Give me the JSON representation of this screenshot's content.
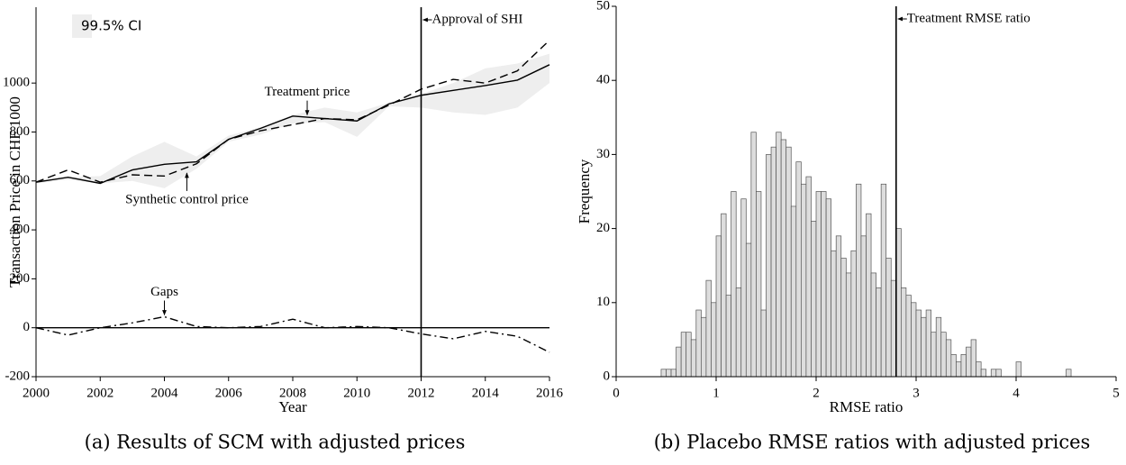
{
  "chart_data": [
    {
      "type": "line",
      "caption": "(a) Results of SCM with adjusted prices",
      "xlabel": "Year",
      "ylabel": "Transaction Price in CHF 1000",
      "x": [
        2000,
        2001,
        2002,
        2003,
        2004,
        2005,
        2006,
        2007,
        2008,
        2009,
        2010,
        2011,
        2012,
        2013,
        2014,
        2015,
        2016
      ],
      "series": [
        {
          "name": "Treatment price",
          "color": "#000000",
          "dash": "solid",
          "values": [
            595,
            615,
            590,
            645,
            668,
            678,
            770,
            815,
            865,
            855,
            845,
            915,
            950,
            970,
            990,
            1012,
            1075
          ],
          "label_at": {
            "x": 2008.45,
            "y": 862,
            "side": "above"
          }
        },
        {
          "name": "Synthetic control price",
          "color": "#000000",
          "dash": "dashed",
          "values": [
            595,
            645,
            595,
            625,
            620,
            670,
            770,
            805,
            830,
            855,
            850,
            910,
            975,
            1015,
            1000,
            1050,
            1175
          ],
          "label_at": {
            "x": 2004.7,
            "y": 640,
            "side": "below"
          }
        },
        {
          "name": "Gaps",
          "color": "#000000",
          "dash": "dashdot",
          "values": [
            0,
            -30,
            0,
            20,
            45,
            5,
            0,
            5,
            35,
            0,
            5,
            0,
            -25,
            -45,
            -15,
            -35,
            -100
          ],
          "label_at": {
            "x": 2004,
            "y": 45,
            "side": "above"
          }
        }
      ],
      "band": {
        "name": "99.5% CI",
        "color": "#eeeeee",
        "lower": [
          590,
          605,
          590,
          600,
          570,
          650,
          760,
          790,
          835,
          840,
          780,
          905,
          900,
          880,
          870,
          900,
          1000
        ],
        "upper": [
          600,
          615,
          620,
          700,
          760,
          700,
          785,
          820,
          870,
          900,
          880,
          920,
          955,
          1000,
          1060,
          1080,
          1120
        ]
      },
      "vline": {
        "x": 2012,
        "label": "Approval of SHI"
      },
      "hline": 0,
      "xlim": [
        2000,
        2016
      ],
      "ylim": [
        -200,
        1310
      ],
      "xticks": [
        2000,
        2002,
        2004,
        2006,
        2008,
        2010,
        2012,
        2014,
        2016
      ],
      "yticks": [
        -200,
        0,
        200,
        400,
        600,
        800,
        1000
      ]
    },
    {
      "type": "histogram",
      "caption": "(b) Placebo RMSE ratios with adjusted prices",
      "xlabel": "RMSE ratio",
      "ylabel": "Frequency",
      "bins": [
        0.45,
        0.5,
        0.55,
        0.6,
        0.65,
        0.7,
        0.75,
        0.8,
        0.85,
        0.9,
        0.95,
        1,
        1.05,
        1.1,
        1.15,
        1.2,
        1.25,
        1.3,
        1.35,
        1.4,
        1.45,
        1.5,
        1.55,
        1.6,
        1.65,
        1.7,
        1.75,
        1.8,
        1.85,
        1.9,
        1.95,
        2,
        2.05,
        2.1,
        2.15,
        2.2,
        2.25,
        2.3,
        2.35,
        2.4,
        2.45,
        2.5,
        2.55,
        2.6,
        2.65,
        2.7,
        2.75,
        2.8,
        2.85,
        2.9,
        2.95,
        3,
        3.05,
        3.1,
        3.15,
        3.2,
        3.25,
        3.3,
        3.35,
        3.4,
        3.45,
        3.5,
        3.55,
        3.6,
        3.65,
        3.7,
        3.75,
        3.8,
        3.85,
        3.9,
        3.95,
        4,
        4.05,
        4.1,
        4.15,
        4.2,
        4.25,
        4.3,
        4.35,
        4.4,
        4.45,
        4.5,
        4.55
      ],
      "counts": [
        1,
        1,
        1,
        4,
        6,
        6,
        5,
        9,
        8,
        13,
        10,
        19,
        22,
        11,
        25,
        12,
        24,
        18,
        33,
        25,
        9,
        30,
        31,
        33,
        32,
        31,
        23,
        29,
        26,
        27,
        21,
        25,
        25,
        24,
        17,
        19,
        16,
        14,
        17,
        26,
        19,
        22,
        14,
        12,
        26,
        16,
        13,
        20,
        12,
        11,
        10,
        9,
        8,
        9,
        6,
        8,
        6,
        5,
        3,
        2,
        3,
        4,
        5,
        2,
        1,
        0,
        1,
        1,
        0,
        0,
        0,
        2,
        0,
        0,
        0,
        0,
        0,
        0,
        0,
        0,
        0,
        1
      ],
      "color": "#dddddd",
      "vline": {
        "x": 2.8,
        "label": "Treatment RMSE ratio"
      },
      "xlim": [
        0,
        5
      ],
      "ylim": [
        0,
        50
      ],
      "xticks": [
        0,
        1,
        2,
        3,
        4,
        5
      ],
      "yticks": [
        0,
        10,
        20,
        30,
        40,
        50
      ]
    }
  ]
}
